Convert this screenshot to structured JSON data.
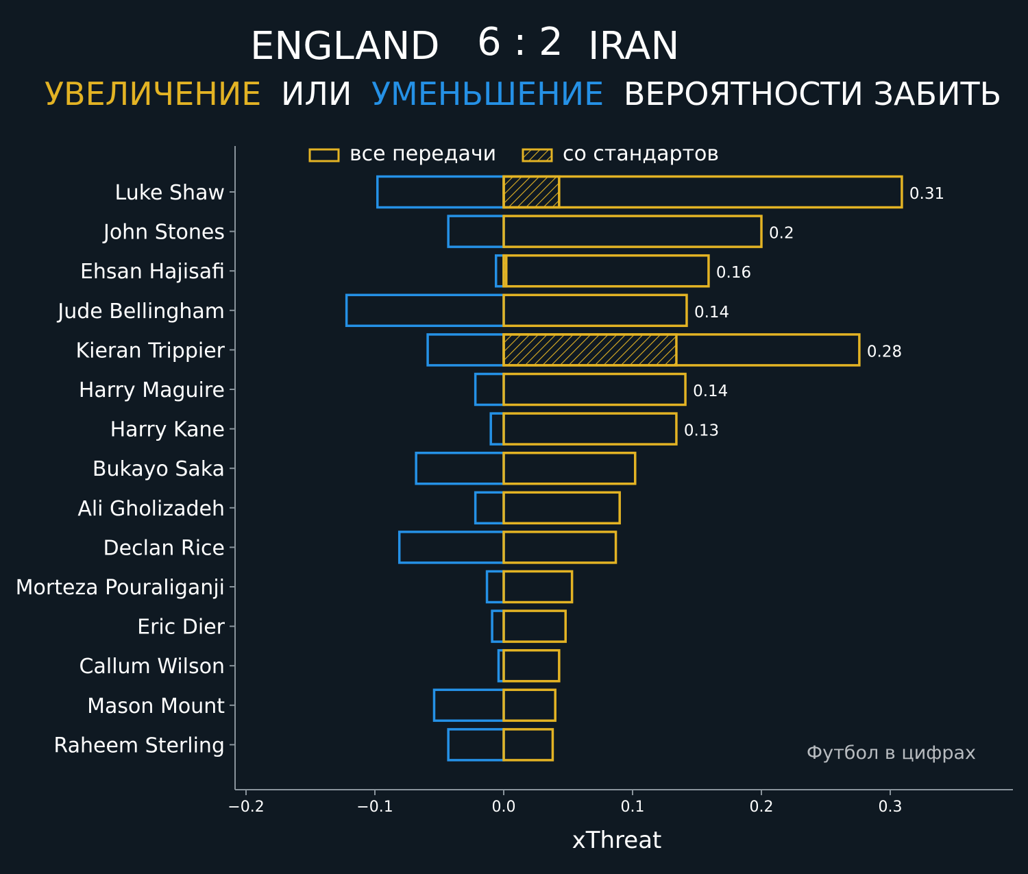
{
  "header": {
    "home_team": "ENGLAND",
    "score": "6 : 2",
    "away_team": "IRAN",
    "subtitle_increase": "УВЕЛИЧЕНИЕ",
    "subtitle_or": "ИЛИ",
    "subtitle_decrease": "УМЕНЬШЕНИЕ",
    "subtitle_rest": "ВЕРОЯТНОСТИ ЗАБИТЬ"
  },
  "legend": {
    "all_passes": "все передачи",
    "set_pieces": "со стандартов"
  },
  "watermark": "Футбол в цифрах",
  "colors": {
    "background": "#0f1922",
    "increase": "#e3b324",
    "decrease": "#2591e6",
    "axis": "#8a949c",
    "text": "#ffffff"
  },
  "chart_data": {
    "type": "bar",
    "orientation": "horizontal",
    "xlabel": "xThreat",
    "xlim": [
      -0.22,
      0.39
    ],
    "xticks": [
      -0.2,
      -0.1,
      0.0,
      0.1,
      0.2,
      0.3
    ],
    "xtick_labels": [
      "−0.2",
      "−0.1",
      "0.0",
      "0.1",
      "0.2",
      "0.3"
    ],
    "categories": [
      "Luke Shaw",
      "John Stones",
      "Ehsan Hajisafi",
      "Jude Bellingham",
      "Kieran Trippier",
      "Harry Maguire",
      "Harry Kane",
      "Bukayo Saka",
      "Ali Gholizadeh",
      "Declan Rice",
      "Morteza Pouraliganji",
      "Eric Dier",
      "Callum Wilson",
      "Mason Mount",
      "Raheem Sterling"
    ],
    "series": [
      {
        "name": "decrease",
        "values": [
          -0.098,
          -0.043,
          -0.006,
          -0.122,
          -0.059,
          -0.022,
          -0.01,
          -0.068,
          -0.022,
          -0.081,
          -0.013,
          -0.009,
          -0.004,
          -0.054,
          -0.043
        ]
      },
      {
        "name": "increase (все передачи)",
        "values": [
          0.309,
          0.2,
          0.159,
          0.142,
          0.276,
          0.141,
          0.134,
          0.102,
          0.09,
          0.087,
          0.053,
          0.048,
          0.043,
          0.04,
          0.038
        ]
      },
      {
        "name": "со стандартов",
        "values": [
          0.043,
          0,
          0.002,
          0,
          0.134,
          0,
          0,
          0,
          0,
          0,
          0,
          0,
          0,
          0,
          0
        ]
      }
    ],
    "value_labels": [
      "0.31",
      "0.2",
      "0.16",
      "0.14",
      "0.28",
      "0.14",
      "0.13",
      "",
      "",
      "",
      "",
      "",
      "",
      "",
      ""
    ]
  }
}
